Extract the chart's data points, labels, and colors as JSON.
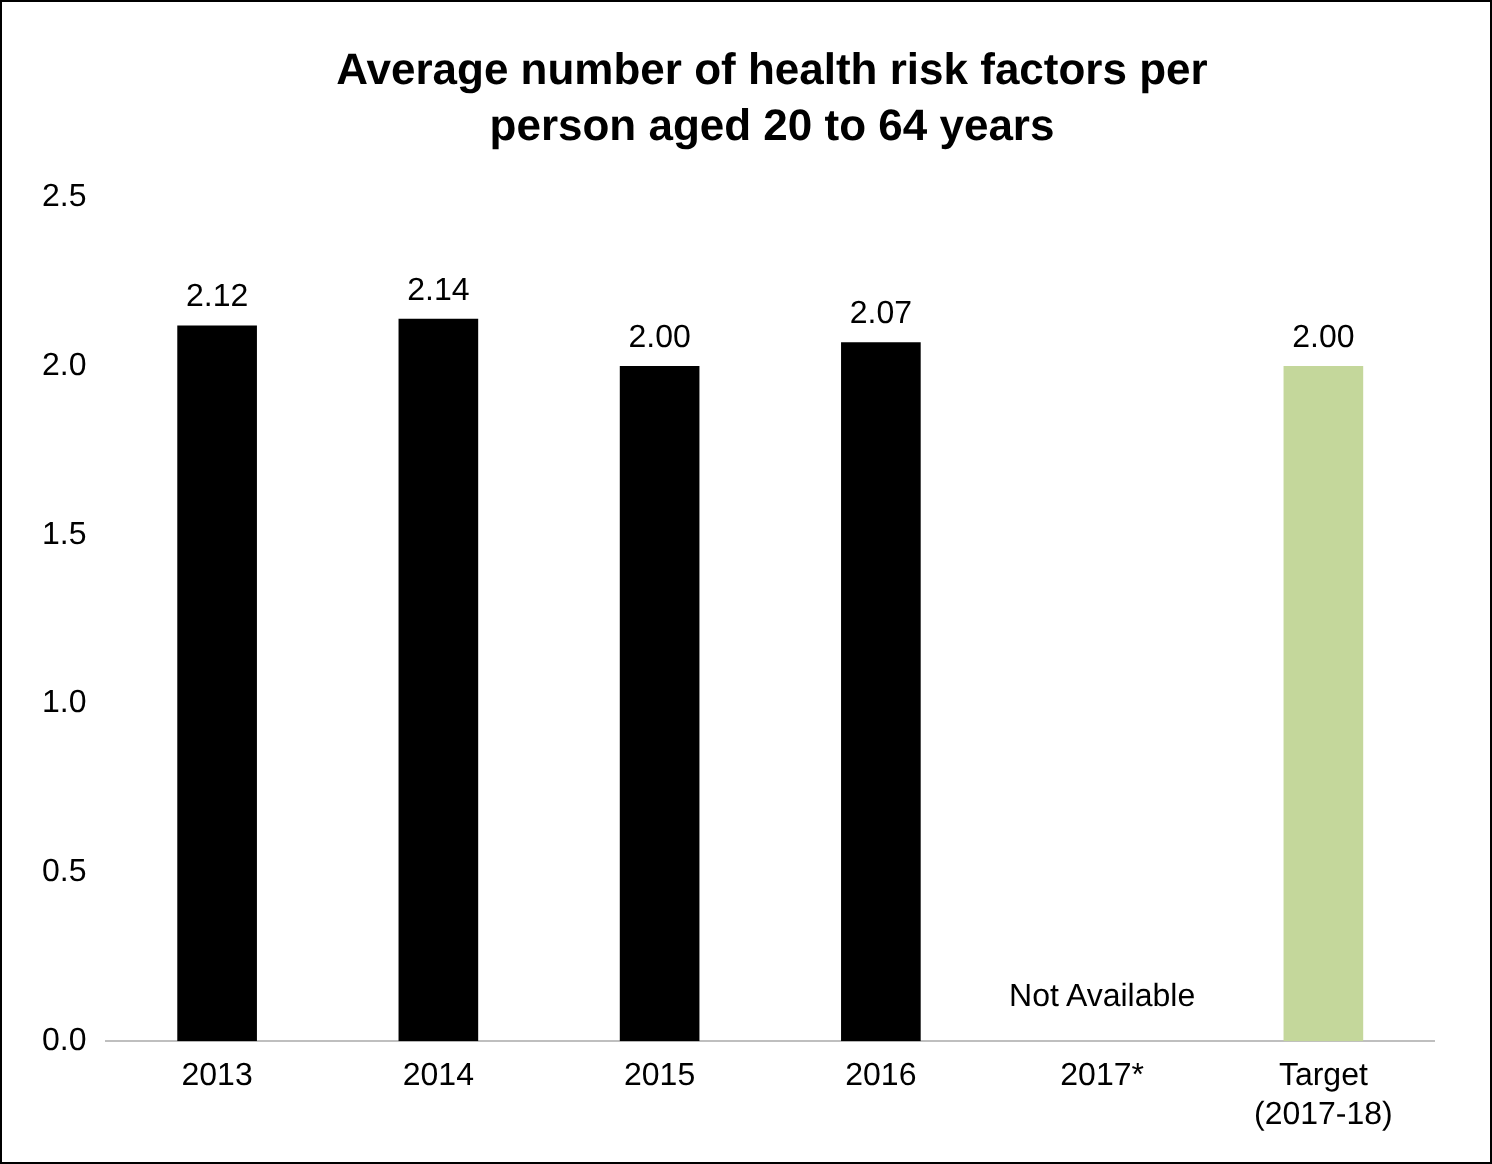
{
  "chart_data": {
    "type": "bar",
    "title": "Average number of health risk factors per person aged 20 to 64 years",
    "categories": [
      "2013",
      "2014",
      "2015",
      "2016",
      "2017*",
      "Target (2017-18)"
    ],
    "values": [
      2.12,
      2.14,
      2.0,
      2.07,
      null,
      2.0
    ],
    "colors": [
      "#000000",
      "#000000",
      "#000000",
      "#000000",
      "#000000",
      "#c4d79b"
    ],
    "value_labels": [
      "2.12",
      "2.14",
      "2.00",
      "2.07",
      null,
      "2.00"
    ],
    "annotations": [
      "Not Available"
    ],
    "ylim": [
      0,
      2.5
    ],
    "yticks": [
      {
        "value": 0,
        "label": "0.0"
      },
      {
        "value": 0.5,
        "label": "0.5"
      },
      {
        "value": 1,
        "label": "1.0"
      },
      {
        "value": 1.5,
        "label": "1.5"
      },
      {
        "value": 2,
        "label": "2.0"
      },
      {
        "value": 2.5,
        "label": "2.5"
      }
    ],
    "grid": false,
    "legend": false
  }
}
